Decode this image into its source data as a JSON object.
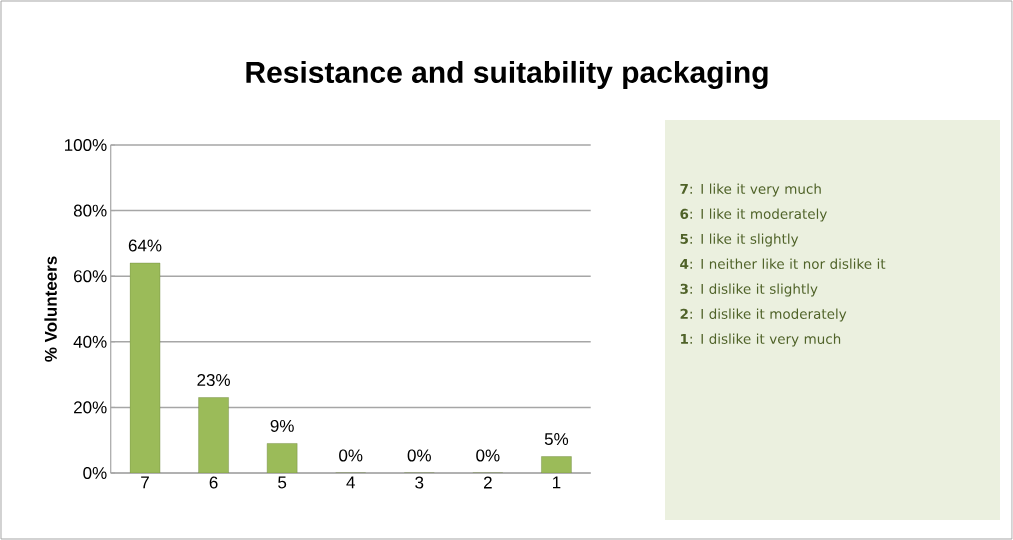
{
  "chart_data": {
    "type": "bar",
    "title": "Resistance and suitability packaging",
    "ylabel": "% Volunteers",
    "categories": [
      "7",
      "6",
      "5",
      "4",
      "3",
      "2",
      "1"
    ],
    "values": [
      64,
      23,
      9,
      0,
      0,
      0,
      5
    ],
    "value_labels": [
      "64%",
      "23%",
      "9%",
      "0%",
      "0%",
      "0%",
      "5%"
    ],
    "color": "#9bbb59",
    "ylim": [
      0,
      100
    ],
    "yticks": [
      {
        "value": 0,
        "label": "0%"
      },
      {
        "value": 20,
        "label": "20%"
      },
      {
        "value": 40,
        "label": "40%"
      },
      {
        "value": 60,
        "label": "60%"
      },
      {
        "value": 80,
        "label": "80%"
      },
      {
        "value": 100,
        "label": "100%"
      }
    ],
    "grid": "y",
    "annotations": [
      "**7**: I like it very much",
      "**6**: I like it moderately",
      "**5**: I like it slightly",
      "**4**: I neither like it nor dislike it",
      "**3**: I dislike it slightly",
      "**2**: I dislike it moderately",
      "**1**: I dislike it very much"
    ]
  }
}
